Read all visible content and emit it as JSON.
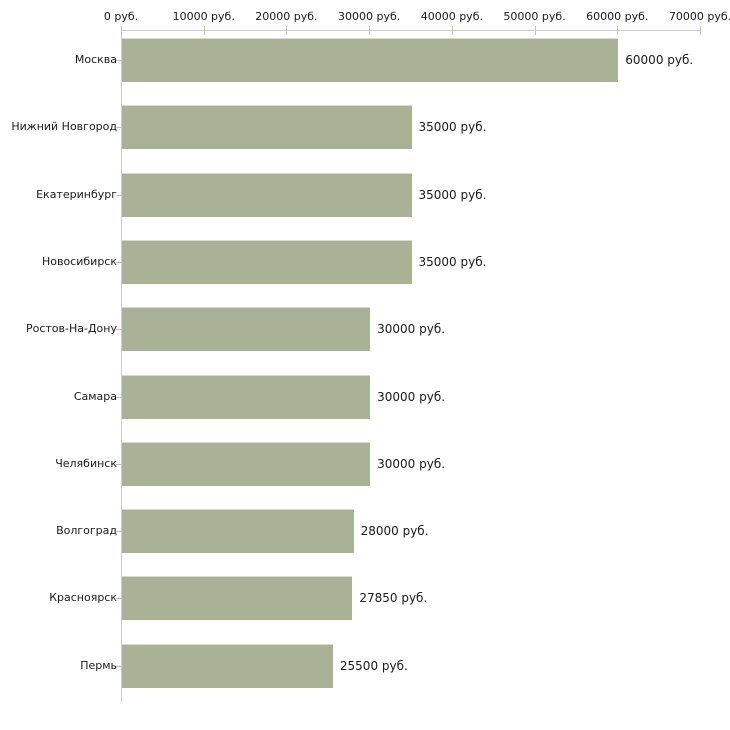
{
  "chart_data": {
    "type": "bar",
    "orientation": "horizontal",
    "title": "",
    "xlabel": "",
    "ylabel": "",
    "unit": "руб.",
    "categories": [
      "Москва",
      "Нижний Новгород",
      "Екатеринбург",
      "Новосибирск",
      "Ростов-На-Дону",
      "Самара",
      "Челябинск",
      "Волгоград",
      "Красноярск",
      "Пермь"
    ],
    "values": [
      60000,
      35000,
      35000,
      35000,
      30000,
      30000,
      30000,
      28000,
      27850,
      25500
    ],
    "value_labels": [
      "60000 руб.",
      "35000 руб.",
      "35000 руб.",
      "35000 руб.",
      "30000 руб.",
      "30000 руб.",
      "30000 руб.",
      "28000 руб.",
      "27850 руб.",
      "25500 руб."
    ],
    "xlim": [
      0,
      70000
    ],
    "x_ticks": [
      0,
      10000,
      20000,
      30000,
      40000,
      50000,
      60000,
      70000
    ],
    "x_tick_labels": [
      "0 руб.",
      "10000 руб.",
      "20000 руб.",
      "30000 руб.",
      "40000 руб.",
      "50000 руб.",
      "60000 руб.",
      "70000 руб."
    ],
    "grid": false,
    "legend": null,
    "axis_position": "top-left",
    "colors": {
      "bar_fill": "#a9b197",
      "bar_top_edge": "#d9dbcd",
      "axis_line": "#cccccc",
      "tick_mark": "#c6c6a2",
      "text": "#1a1a1a",
      "background": "#ffffff"
    }
  }
}
